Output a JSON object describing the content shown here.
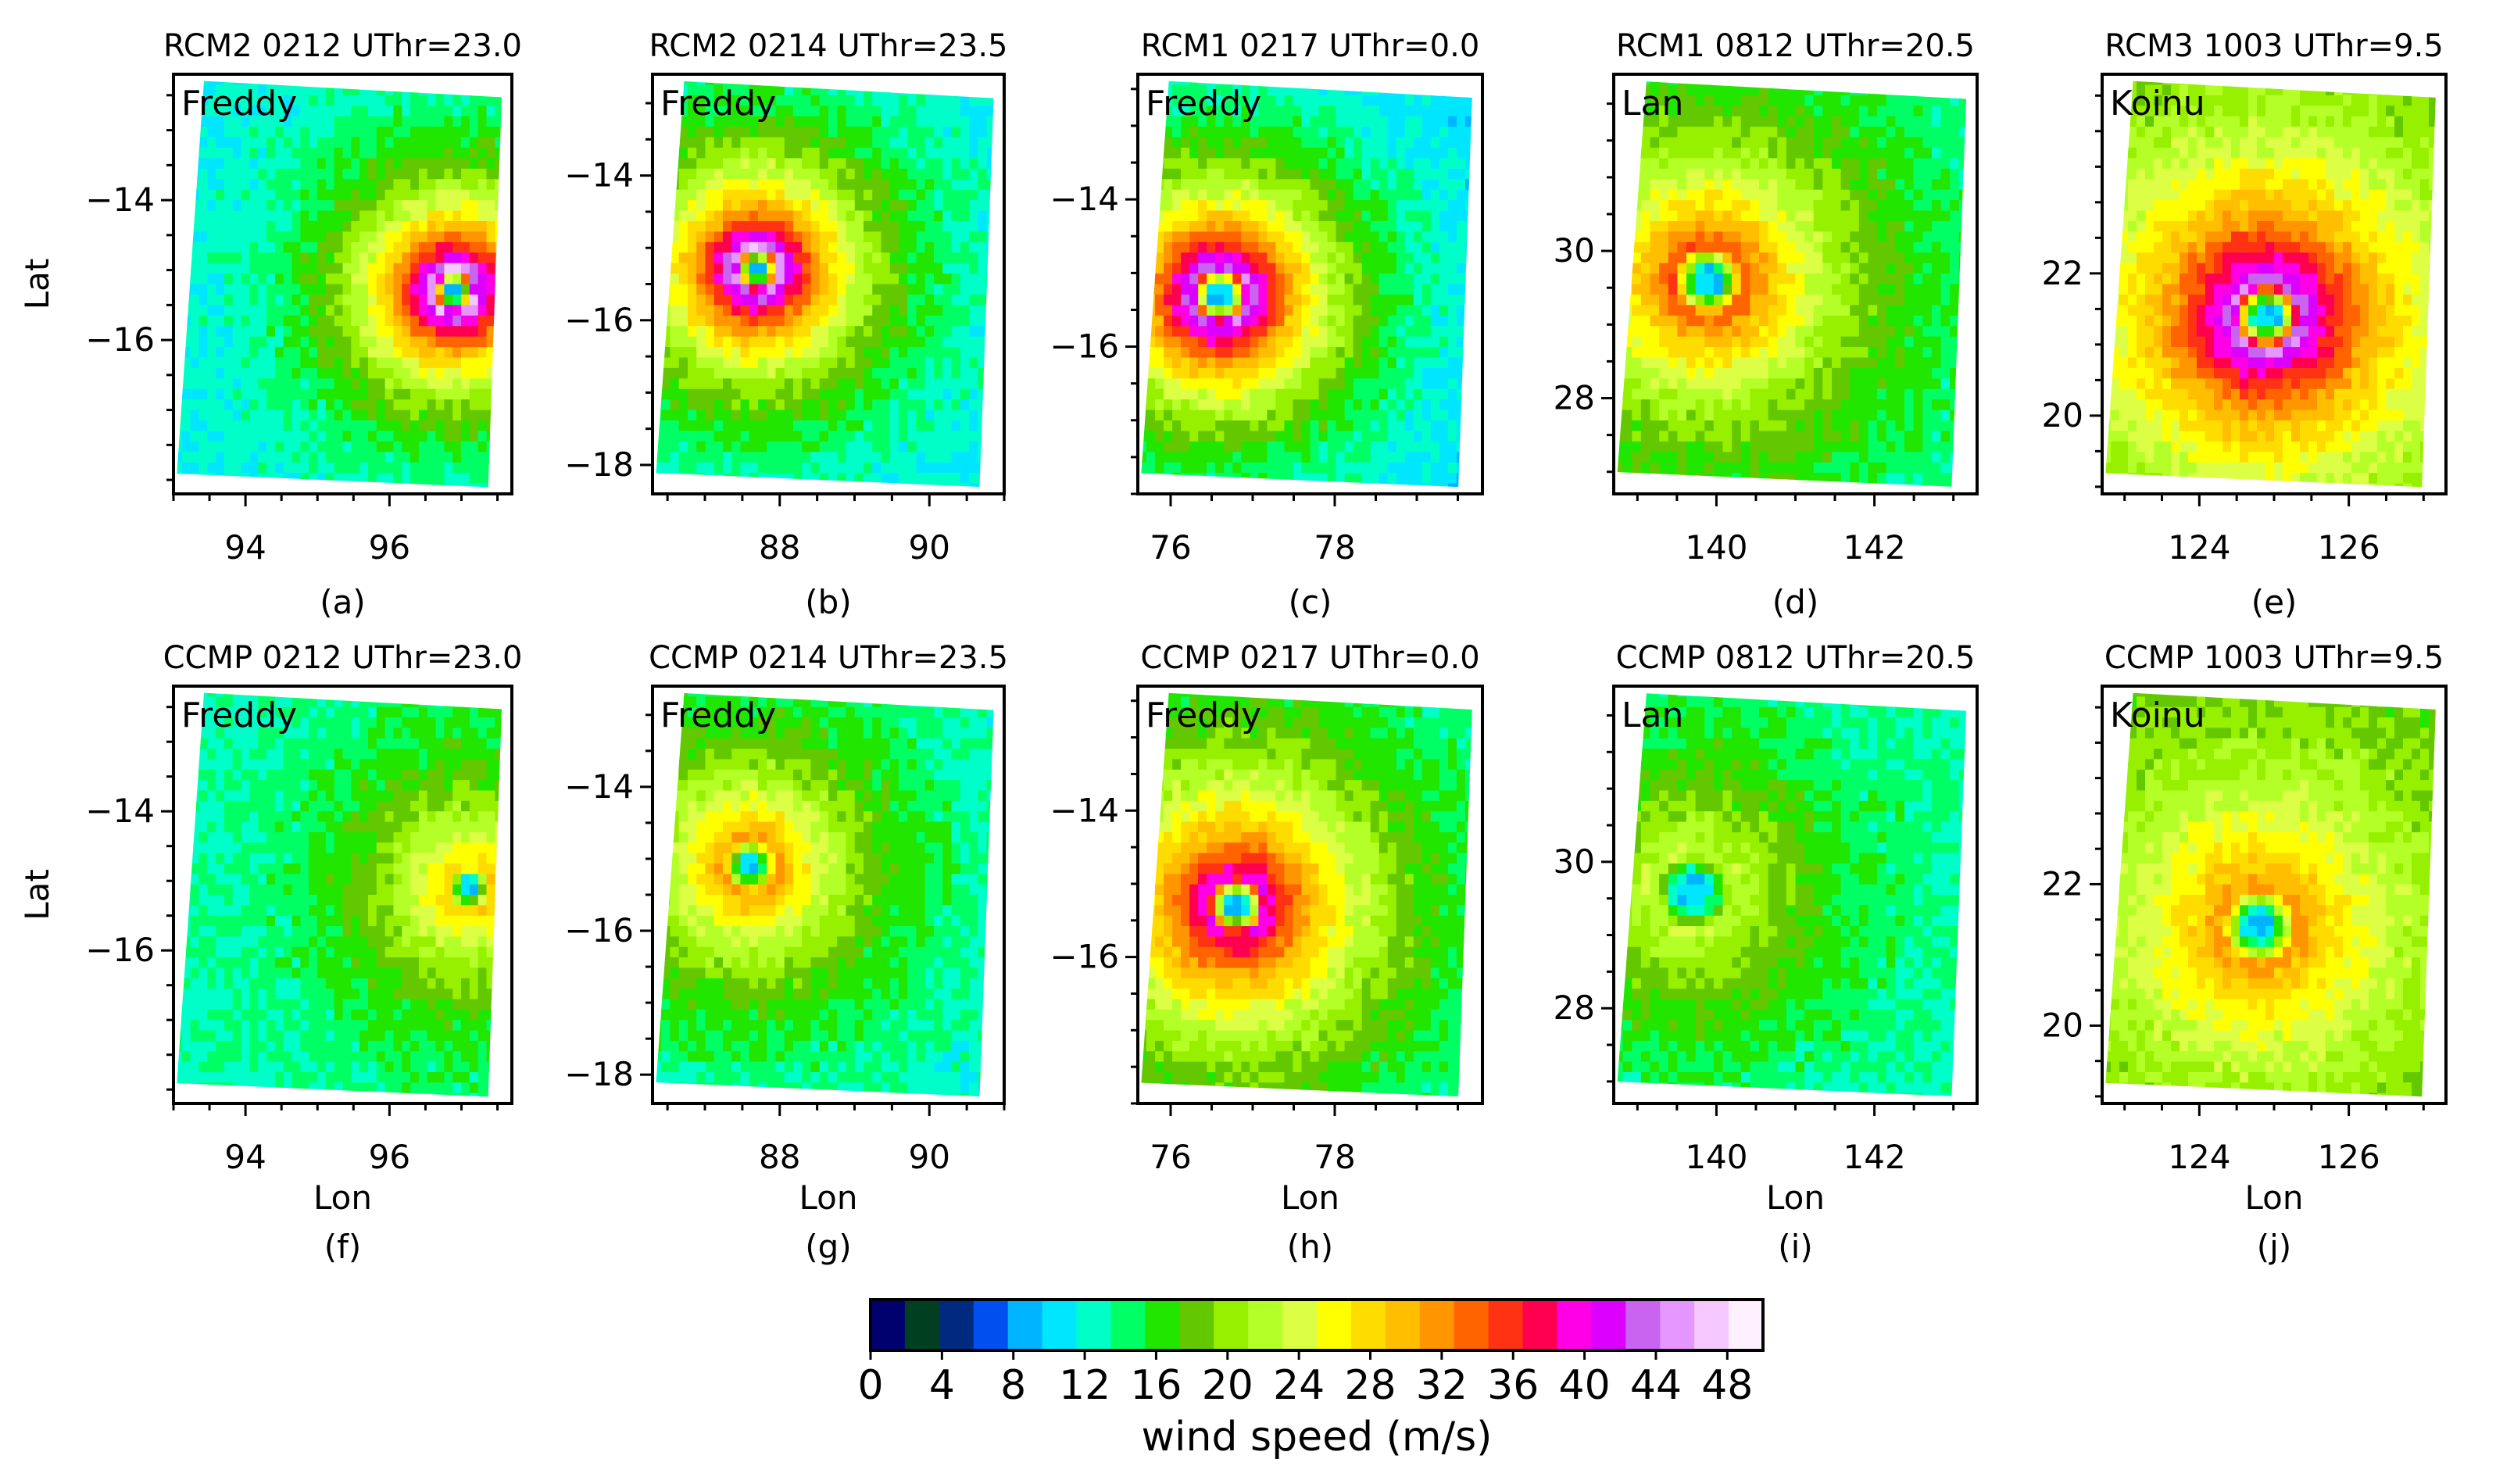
{
  "figure": {
    "colorbar_label": "wind speed (m/s)",
    "colorbar_ticks": [
      "0",
      "4",
      "8",
      "12",
      "16",
      "20",
      "24",
      "28",
      "32",
      "36",
      "40",
      "44",
      "48"
    ]
  },
  "chart_data": {
    "type": "heatmap",
    "variable": "wind speed (m/s)",
    "colorbar": {
      "vmin": 0,
      "vmax": 50,
      "step": 2,
      "ticks": [
        0,
        4,
        8,
        12,
        16,
        20,
        24,
        28,
        32,
        36,
        40,
        44,
        48
      ],
      "colors": [
        "#00006e",
        "#004020",
        "#002a80",
        "#0050f0",
        "#00b4ff",
        "#00e6ff",
        "#00ffc8",
        "#00ff64",
        "#20e600",
        "#64c800",
        "#96f000",
        "#b4ff28",
        "#dcff46",
        "#ffff00",
        "#ffdc00",
        "#ffbe00",
        "#ff9600",
        "#ff6400",
        "#ff3214",
        "#ff0050",
        "#ff00e6",
        "#dc00ff",
        "#c864f0",
        "#e696ff",
        "#f5c8ff",
        "#fff0ff"
      ]
    },
    "panels": [
      {
        "id": "a",
        "title": "RCM2 0212 UThr=23.0",
        "storm": "Freddy",
        "caption": "(a)",
        "source": "RCM2",
        "xticks": [
          "94",
          "96"
        ],
        "yticks": [
          "−14",
          "−16"
        ],
        "ylabel": "Lat",
        "xlabel": "",
        "center": [
          96.9,
          -15.3
        ],
        "vmax": 48,
        "rmw": 0.3,
        "decay": 1.5,
        "bg": 11.5,
        "xlim": [
          93.0,
          97.7
        ],
        "ylim": [
          -18.2,
          -12.2
        ]
      },
      {
        "id": "b",
        "title": "RCM2 0214 UThr=23.5",
        "storm": "Freddy",
        "caption": "(b)",
        "source": "RCM2",
        "xticks": [
          "88",
          "90"
        ],
        "yticks": [
          "−14",
          "−16",
          "−18"
        ],
        "ylabel": "",
        "xlabel": "",
        "center": [
          87.7,
          -15.3
        ],
        "vmax": 47,
        "rmw": 0.3,
        "decay": 1.6,
        "bg": 11,
        "xlim": [
          86.3,
          91.0
        ],
        "ylim": [
          -18.4,
          -12.6
        ]
      },
      {
        "id": "c",
        "title": "RCM1 0217 UThr=0.0",
        "storm": "Freddy",
        "caption": "(c)",
        "source": "RCM1",
        "xticks": [
          "76",
          "78"
        ],
        "yticks": [
          "−14",
          "−16"
        ],
        "ylabel": "",
        "xlabel": "",
        "center": [
          76.6,
          -15.3
        ],
        "vmax": 46,
        "rmw": 0.35,
        "decay": 1.7,
        "bg": 9,
        "xlim": [
          75.6,
          79.8
        ],
        "ylim": [
          -18.0,
          -12.3
        ]
      },
      {
        "id": "d",
        "title": "RCM1 0812 UThr=20.5",
        "storm": "Lan",
        "caption": "(d)",
        "source": "RCM1",
        "xticks": [
          "140",
          "142"
        ],
        "yticks": [
          "30",
          "28"
        ],
        "ylabel": "",
        "xlabel": "",
        "center": [
          139.9,
          29.6
        ],
        "vmax": 36,
        "rmw": 0.45,
        "decay": 2.0,
        "bg": 13,
        "xlim": [
          138.7,
          143.3
        ],
        "ylim": [
          26.7,
          32.4
        ]
      },
      {
        "id": "e",
        "title": "RCM3 1003 UThr=9.5",
        "storm": "Koinu",
        "caption": "(e)",
        "source": "RCM3",
        "xticks": [
          "124",
          "126"
        ],
        "yticks": [
          "22",
          "20"
        ],
        "ylabel": "",
        "xlabel": "",
        "center": [
          124.9,
          21.4
        ],
        "vmax": 46,
        "rmw": 0.45,
        "decay": 2.2,
        "bg": 17,
        "xlim": [
          122.7,
          127.3
        ],
        "ylim": [
          18.9,
          24.8
        ]
      },
      {
        "id": "f",
        "title": "CCMP 0212 UThr=23.0",
        "storm": "Freddy",
        "caption": "(f)",
        "source": "CCMP",
        "xticks": [
          "94",
          "96"
        ],
        "yticks": [
          "−14",
          "−16"
        ],
        "ylabel": "Lat",
        "xlabel": "Lon",
        "center": [
          97.1,
          -15.1
        ],
        "vmax": 30,
        "rmw": 0.3,
        "decay": 1.8,
        "bg": 13,
        "xlim": [
          93.0,
          97.7
        ],
        "ylim": [
          -18.2,
          -12.2
        ]
      },
      {
        "id": "g",
        "title": "CCMP 0214 UThr=23.5",
        "storm": "Freddy",
        "caption": "(g)",
        "source": "CCMP",
        "xticks": [
          "88",
          "90"
        ],
        "yticks": [
          "−14",
          "−16",
          "−18"
        ],
        "ylabel": "",
        "xlabel": "Lon",
        "center": [
          87.6,
          -15.1
        ],
        "vmax": 33,
        "rmw": 0.35,
        "decay": 1.9,
        "bg": 12,
        "xlim": [
          86.3,
          91.0
        ],
        "ylim": [
          -18.4,
          -12.6
        ]
      },
      {
        "id": "h",
        "title": "CCMP 0217 UThr=0.0",
        "storm": "Freddy",
        "caption": "(h)",
        "source": "CCMP",
        "xticks": [
          "76",
          "78"
        ],
        "yticks": [
          "−14",
          "−16"
        ],
        "ylabel": "",
        "xlabel": "Lon",
        "center": [
          76.8,
          -15.3
        ],
        "vmax": 42,
        "rmw": 0.35,
        "decay": 2.0,
        "bg": 12,
        "xlim": [
          75.6,
          79.8
        ],
        "ylim": [
          -18.0,
          -12.3
        ]
      },
      {
        "id": "i",
        "title": "CCMP 0812 UThr=20.5",
        "storm": "Lan",
        "caption": "(i)",
        "source": "CCMP",
        "xticks": [
          "140",
          "142"
        ],
        "yticks": [
          "30",
          "28"
        ],
        "ylabel": "",
        "xlabel": "Lon",
        "center": [
          139.7,
          29.6
        ],
        "vmax": 24,
        "rmw": 0.5,
        "decay": 2.2,
        "bg": 12.5,
        "xlim": [
          138.7,
          143.3
        ],
        "ylim": [
          26.7,
          32.4
        ]
      },
      {
        "id": "j",
        "title": "CCMP 1003 UThr=9.5",
        "storm": "Koinu",
        "caption": "(j)",
        "source": "CCMP",
        "xticks": [
          "124",
          "126"
        ],
        "yticks": [
          "22",
          "20"
        ],
        "ylabel": "",
        "xlabel": "Lon",
        "center": [
          124.8,
          21.4
        ],
        "vmax": 33,
        "rmw": 0.5,
        "decay": 2.4,
        "bg": 17,
        "xlim": [
          122.7,
          127.3
        ],
        "ylim": [
          18.9,
          24.8
        ]
      }
    ]
  }
}
